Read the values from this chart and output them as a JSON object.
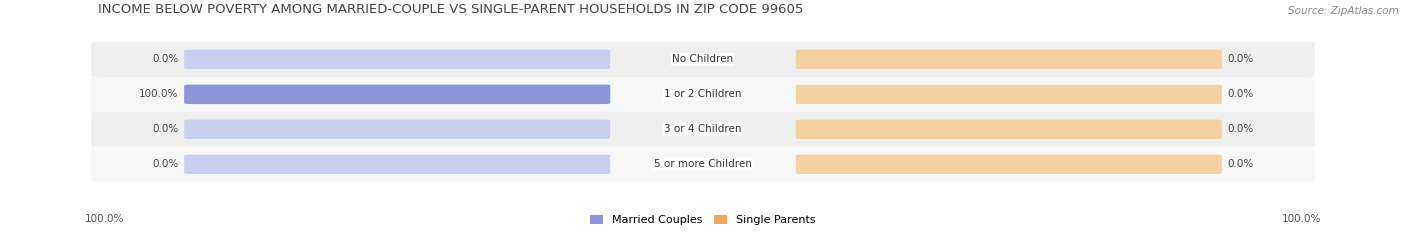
{
  "title": "INCOME BELOW POVERTY AMONG MARRIED-COUPLE VS SINGLE-PARENT HOUSEHOLDS IN ZIP CODE 99605",
  "source": "Source: ZipAtlas.com",
  "categories": [
    "No Children",
    "1 or 2 Children",
    "3 or 4 Children",
    "5 or more Children"
  ],
  "married_values": [
    0.0,
    100.0,
    0.0,
    0.0
  ],
  "single_values": [
    0.0,
    0.0,
    0.0,
    0.0
  ],
  "married_color": "#8B96D9",
  "married_color_light": "#C8CEEE",
  "single_color": "#F0A860",
  "single_color_light": "#F5D0A0",
  "row_bg_even": "#EFEFEF",
  "row_bg_odd": "#F7F7F7",
  "title_fontsize": 9.5,
  "source_fontsize": 7.5,
  "label_fontsize": 7.5,
  "category_fontsize": 7.5,
  "legend_fontsize": 8,
  "axis_label_fontsize": 7.5,
  "background_color": "#FFFFFF",
  "max_value": 100.0,
  "married_label": "Married Couples",
  "single_label": "Single Parents",
  "bottom_left_label": "100.0%",
  "bottom_right_label": "100.0%"
}
